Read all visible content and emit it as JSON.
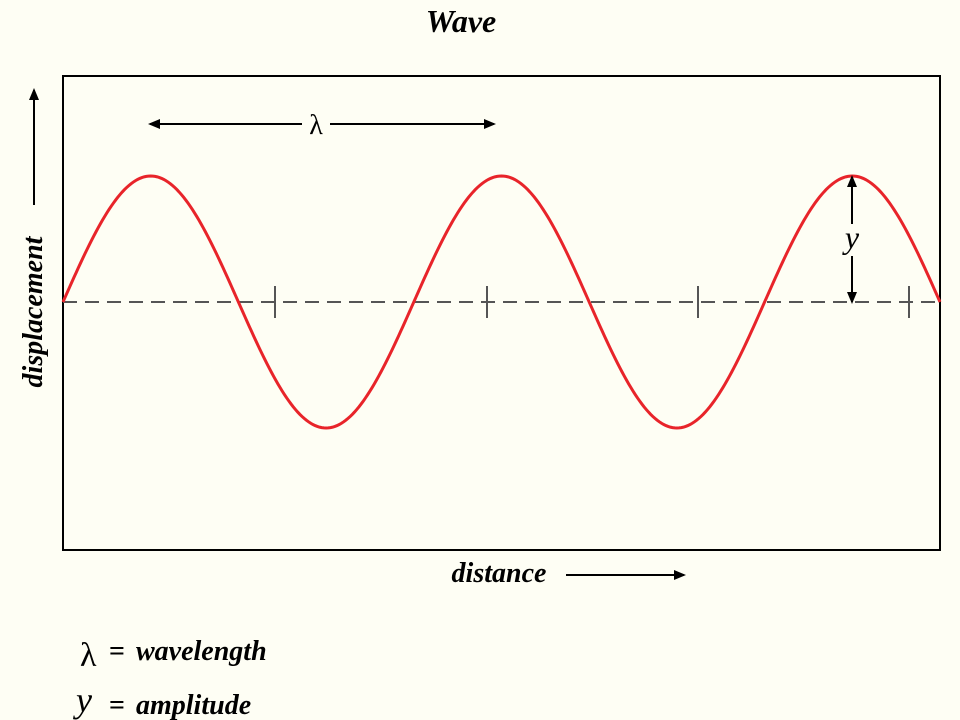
{
  "title": "Wave",
  "axes": {
    "x_label": "distance",
    "y_label": "displacement"
  },
  "annotations": {
    "wavelength_symbol": "λ",
    "amplitude_symbol": "y"
  },
  "legend": {
    "wavelength": {
      "symbol": "λ",
      "equals": "=",
      "text": "wavelength"
    },
    "amplitude": {
      "symbol": "y",
      "equals": "=",
      "text": "amplitude"
    }
  },
  "wave": {
    "cycles_shown": 2.5,
    "tick_marks_on_axis": 4
  },
  "colors": {
    "wave": "#e8242a",
    "frame": "#000000",
    "axis_dash": "#555555",
    "background": "#fefef4"
  }
}
